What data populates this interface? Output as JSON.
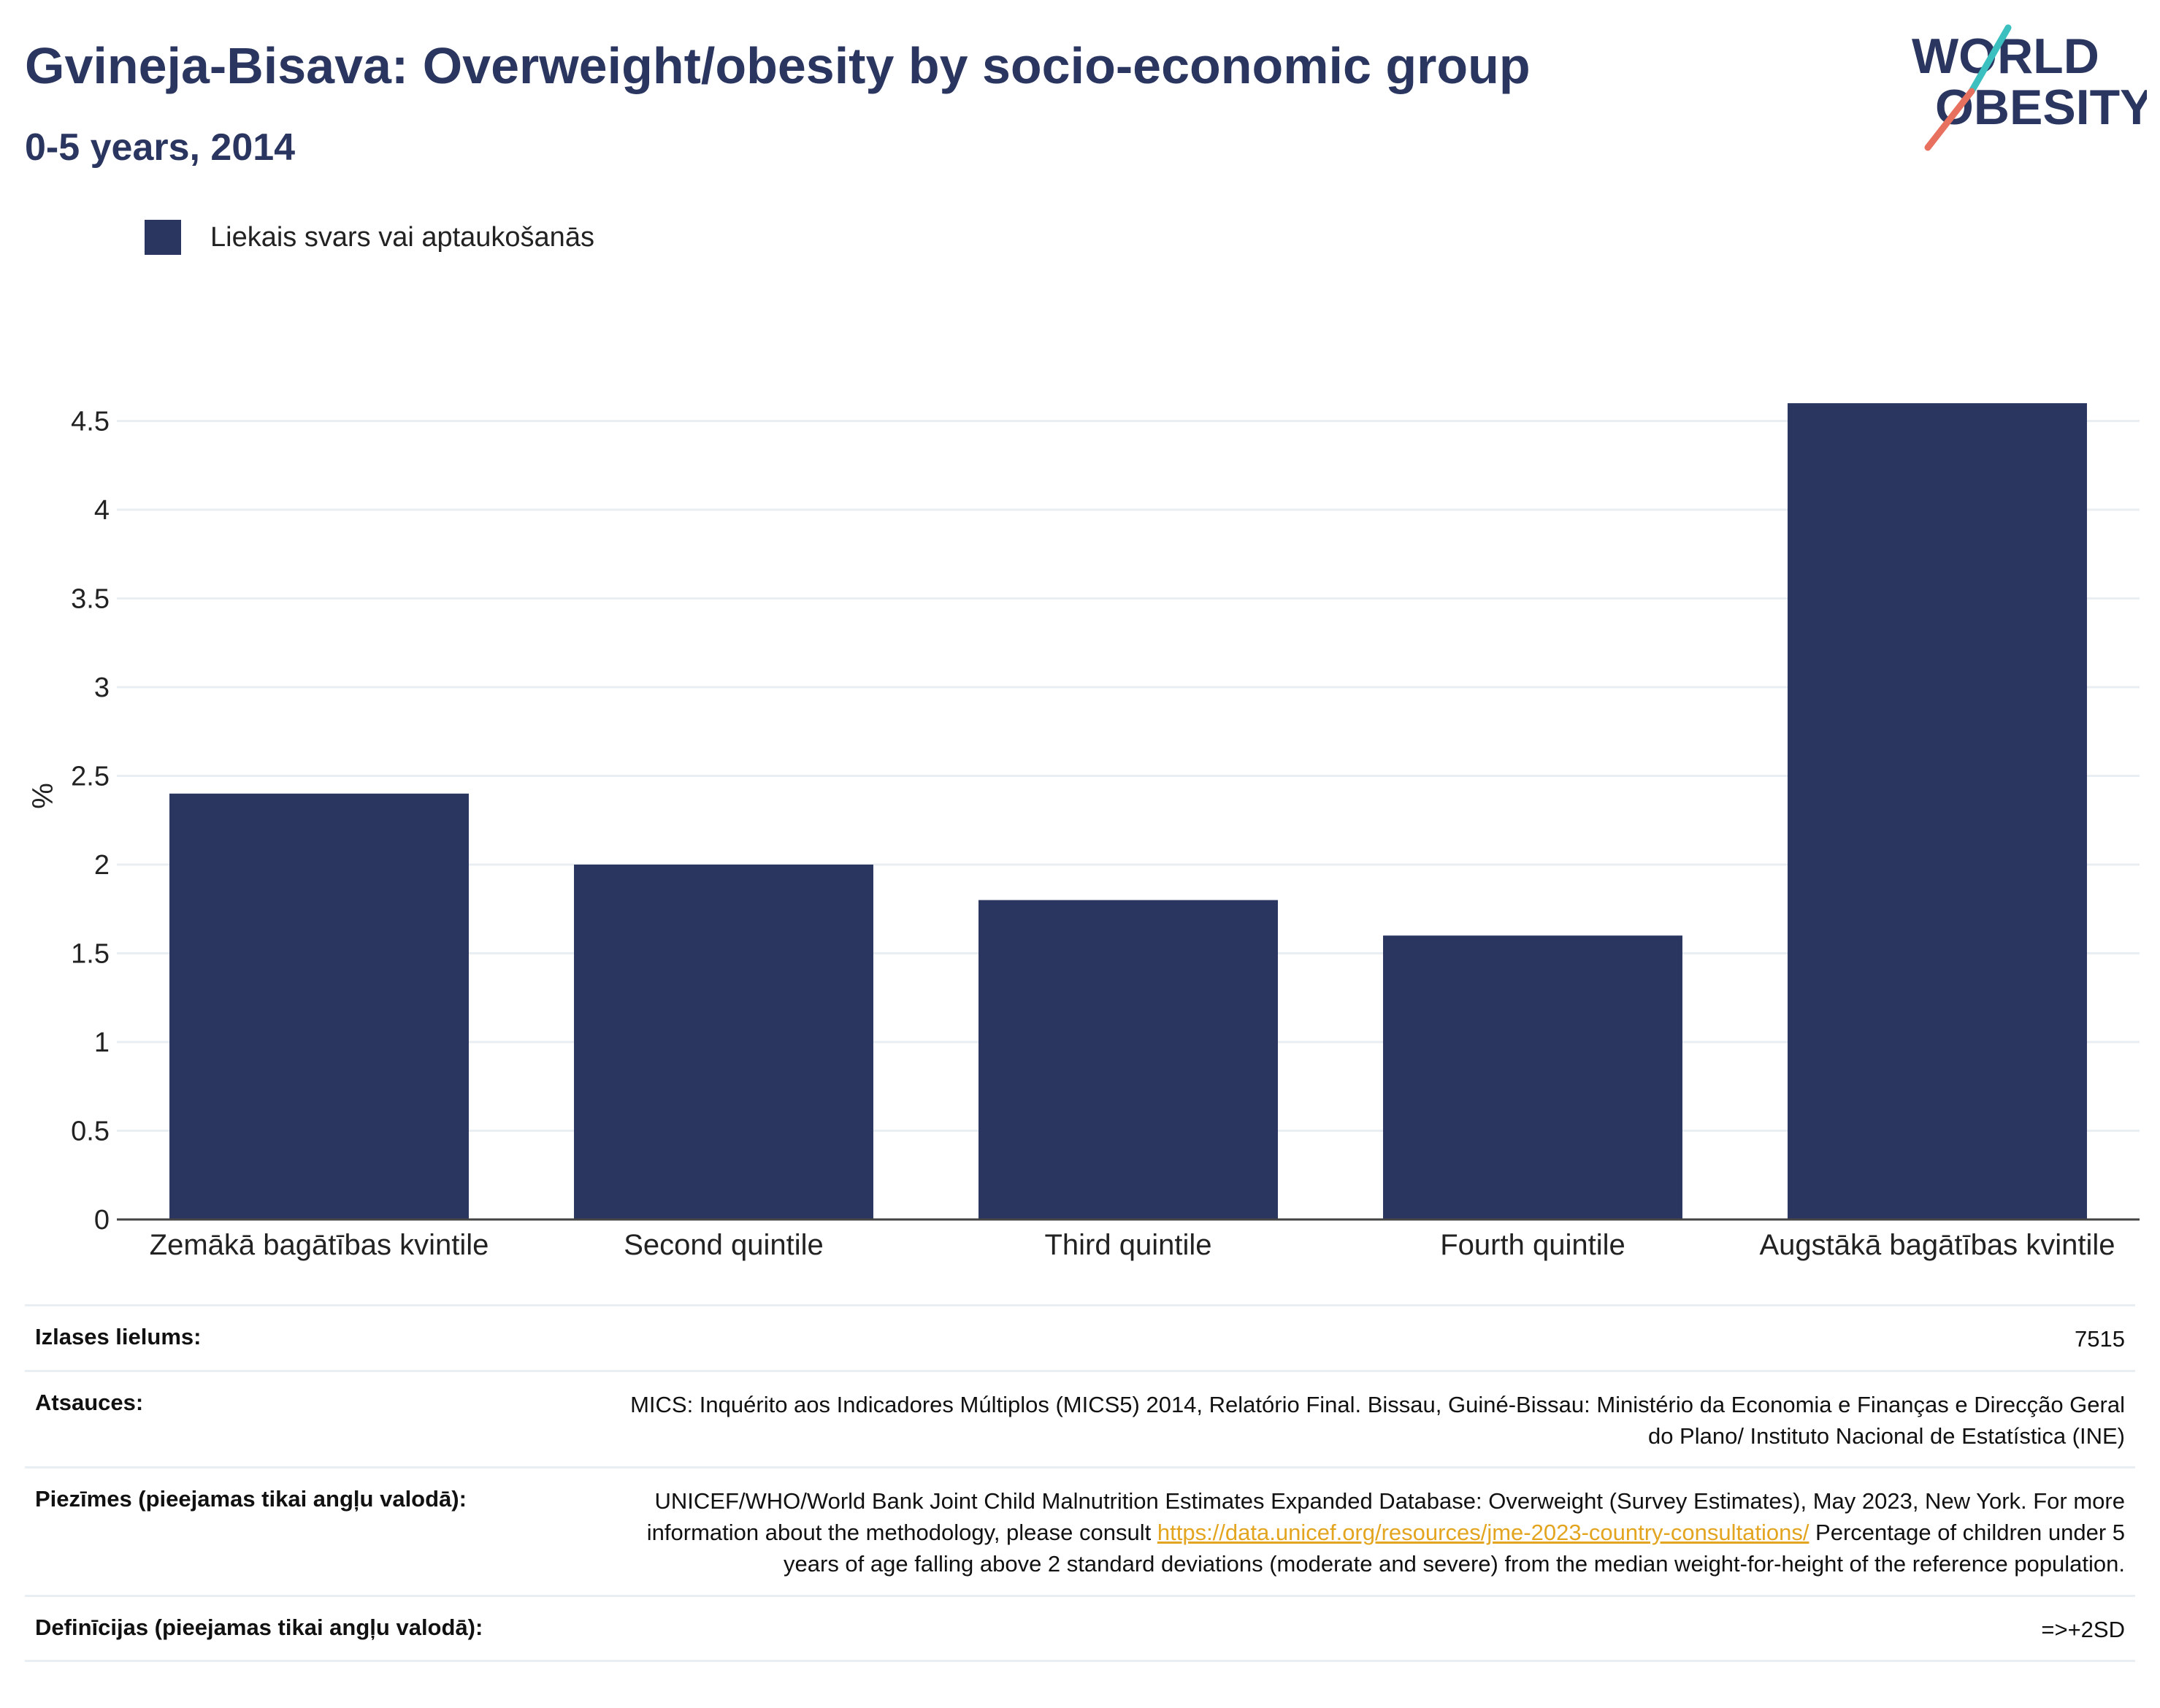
{
  "header": {
    "title": "Gvineja-Bisava: Overweight/obesity by socio-economic group",
    "subtitle": "0-5 years, 2014",
    "logo_line1": "WORLD",
    "logo_line2": "OBESITY"
  },
  "legend": {
    "label": "Liekais svars vai aptaukošanās"
  },
  "colors": {
    "bar": "#2a365f",
    "title": "#2a365f",
    "link": "#e3a520",
    "grid": "#e8eef2",
    "logo_teal": "#3bbfbf",
    "logo_coral": "#e8705f"
  },
  "chart_data": {
    "type": "bar",
    "categories": [
      "Zemākā bagātības kvintile",
      "Second quintile",
      "Third quintile",
      "Fourth quintile",
      "Augstākā bagātības kvintile"
    ],
    "series": [
      {
        "name": "Liekais svars vai aptaukošanās",
        "values": [
          2.4,
          2.0,
          1.8,
          1.6,
          4.6
        ]
      }
    ],
    "title": "Gvineja-Bisava: Overweight/obesity by socio-economic group",
    "subtitle": "0-5 years, 2014",
    "xlabel": "",
    "ylabel": "%",
    "ylim": [
      0,
      4.65
    ],
    "yticks": [
      0,
      0.5,
      1,
      1.5,
      2,
      2.5,
      3,
      3.5,
      4,
      4.5
    ],
    "ytick_labels": [
      "0",
      "0.5",
      "1",
      "1.5",
      "2",
      "2.5",
      "3",
      "3.5",
      "4",
      "4.5"
    ],
    "grid": true,
    "legend_position": "top-left"
  },
  "info": {
    "sample_label": "Izlases lielums:",
    "sample_value": "7515",
    "sources_label": "Atsauces:",
    "sources_value": "MICS: Inquérito aos Indicadores Múltiplos (MICS5) 2014, Relatório Final. Bissau, Guiné-Bissau: Ministério da Economia e Finanças e Direcção Geral do Plano/ Instituto Nacional de Estatística (INE)",
    "notes_label": "Piezīmes (pieejamas tikai angļu valodā):",
    "notes_text_1": "UNICEF/WHO/World Bank Joint Child Malnutrition Estimates Expanded Database: Overweight (Survey Estimates), May 2023, New York. For more information about the methodology, please consult ",
    "notes_link": "https://data.unicef.org/resources/jme-2023-country-consultations/",
    "notes_text_2": " Percentage of children under 5 years of age falling above 2 standard deviations (moderate and severe) from the median weight-for-height of the reference population.",
    "definitions_label": "Definīcijas (pieejamas tikai angļu valodā):",
    "definitions_value": "=>+2SD"
  }
}
